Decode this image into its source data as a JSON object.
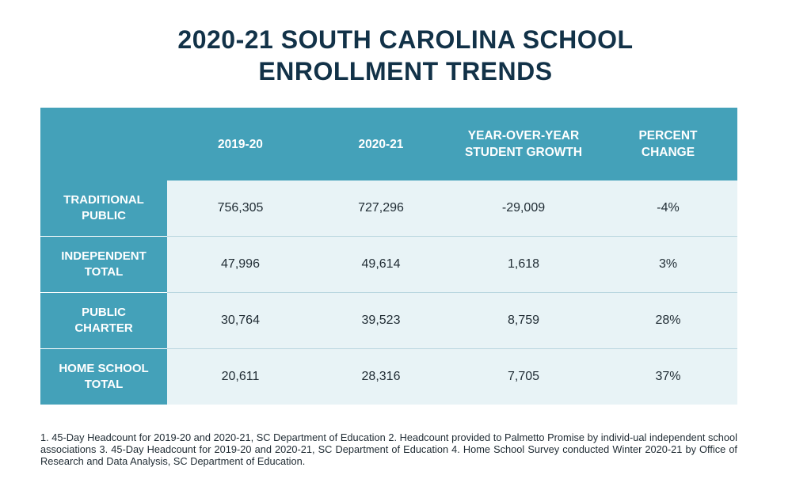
{
  "title": {
    "line1": "2020-21 SOUTH CAROLINA SCHOOL",
    "line2": "ENROLLMENT TRENDS"
  },
  "table": {
    "header": {
      "corner": "",
      "col1": "2019-20",
      "col2": "2020-21",
      "col3_line1": "YEAR-OVER-YEAR",
      "col3_line2": "STUDENT GROWTH",
      "col4_line1": "PERCENT",
      "col4_line2": "CHANGE"
    },
    "rows": [
      {
        "label_line1": "TRADITIONAL",
        "label_line2": "PUBLIC",
        "y2019": "756,305",
        "y2020": "727,296",
        "growth": "-29,009",
        "pct": "-4%"
      },
      {
        "label_line1": "INDEPENDENT",
        "label_line2": "TOTAL",
        "y2019": "47,996",
        "y2020": "49,614",
        "growth": "1,618",
        "pct": "3%"
      },
      {
        "label_line1": "PUBLIC",
        "label_line2": "CHARTER",
        "y2019": "30,764",
        "y2020": "39,523",
        "growth": "8,759",
        "pct": "28%"
      },
      {
        "label_line1": "HOME SCHOOL",
        "label_line2": "TOTAL",
        "y2019": "20,611",
        "y2020": "28,316",
        "growth": "7,705",
        "pct": "37%"
      }
    ]
  },
  "footnote": "1. 45-Day Headcount for 2019-20 and 2020-21, SC Department of Education  2. Headcount provided to Palmetto Promise by individ-ual independent school associations 3. 45-Day Headcount for 2019-20 and 2020-21, SC Department of Education 4. Home School Survey conducted Winter 2020-21 by Office of Research and Data Analysis, SC Department of Education.",
  "colors": {
    "header_bg": "#44a1b9",
    "cell_bg": "#e8f3f6",
    "title": "#123248"
  }
}
